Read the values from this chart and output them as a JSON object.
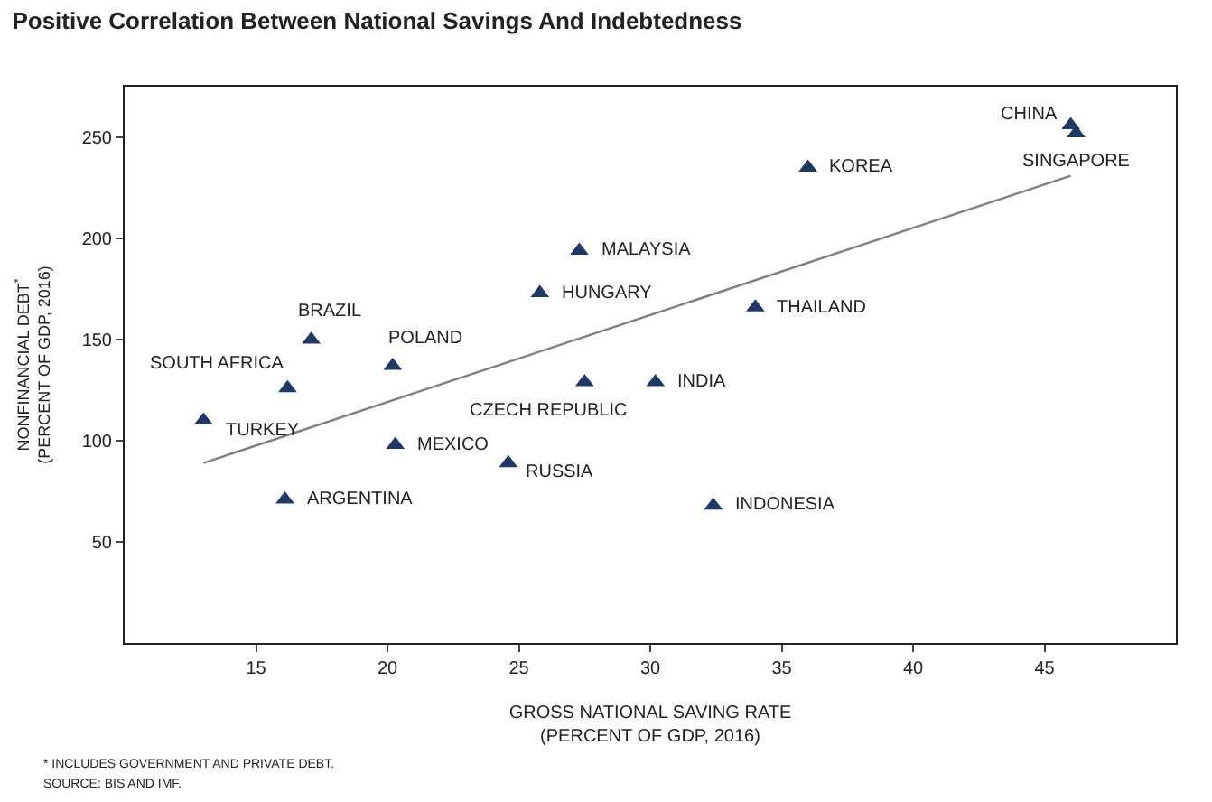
{
  "chart_data": {
    "type": "scatter",
    "title": "Positive Correlation Between National Savings And Indebtedness",
    "xlabel": "GROSS NATIONAL SAVING RATE\n(PERCENT OF GDP, 2016)",
    "ylabel": "NONFINANCIAL DEBT$^{*}$\n(PERCENT OF GDP, 2016)",
    "xlim": [
      10,
      50
    ],
    "xticks": [
      15,
      20,
      25,
      30,
      35,
      40,
      45
    ],
    "ylim": [
      0,
      275
    ],
    "yticks": [
      50,
      100,
      150,
      200,
      250
    ],
    "marker": "triangle",
    "series": [
      {
        "color": "#1f3864",
        "x": [
          13,
          16.2,
          17.1,
          20.2,
          16.1,
          20.3,
          24.6,
          25.8,
          27.3,
          27.5,
          30.2,
          32.4,
          34.0,
          36.0,
          46.0,
          46.2
        ],
        "values": [
          110,
          126,
          150,
          137,
          71,
          98,
          89,
          173,
          194,
          129,
          129,
          68,
          166,
          235,
          256,
          252
        ]
      },
      {
        "type": "line",
        "color": "#808080",
        "x": [
          13,
          46
        ],
        "values": [
          89,
          231
        ],
        "marker": "none"
      }
    ],
    "annotations": [
      {
        "text": "TURKEY",
        "x": 13,
        "y": 110
      },
      {
        "text": "SOUTH AFRICA",
        "x": 16.2,
        "y": 126
      },
      {
        "text": "BRAZIL",
        "x": 17.1,
        "y": 150
      },
      {
        "text": "POLAND",
        "x": 20.2,
        "y": 137
      },
      {
        "text": "ARGENTINA",
        "x": 16.1,
        "y": 71
      },
      {
        "text": "MEXICO",
        "x": 20.3,
        "y": 98
      },
      {
        "text": "RUSSIA",
        "x": 24.6,
        "y": 89
      },
      {
        "text": "HUNGARY",
        "x": 25.8,
        "y": 173
      },
      {
        "text": "MALAYSIA",
        "x": 27.3,
        "y": 194
      },
      {
        "text": "CZECH REPUBLIC",
        "x": 27.5,
        "y": 129
      },
      {
        "text": "INDIA",
        "x": 30.2,
        "y": 129
      },
      {
        "text": "INDONESIA",
        "x": 32.4,
        "y": 68
      },
      {
        "text": "THAILAND",
        "x": 34.0,
        "y": 166
      },
      {
        "text": "KOREA",
        "x": 36.0,
        "y": 235
      },
      {
        "text": "CHINA",
        "x": 46.0,
        "y": 256
      },
      {
        "text": "SINGAPORE",
        "x": 46.2,
        "y": 252
      },
      "* INCLUDES GOVERNMENT AND PRIVATE DEBT.",
      "SOURCE: BIS AND IMF."
    ]
  }
}
